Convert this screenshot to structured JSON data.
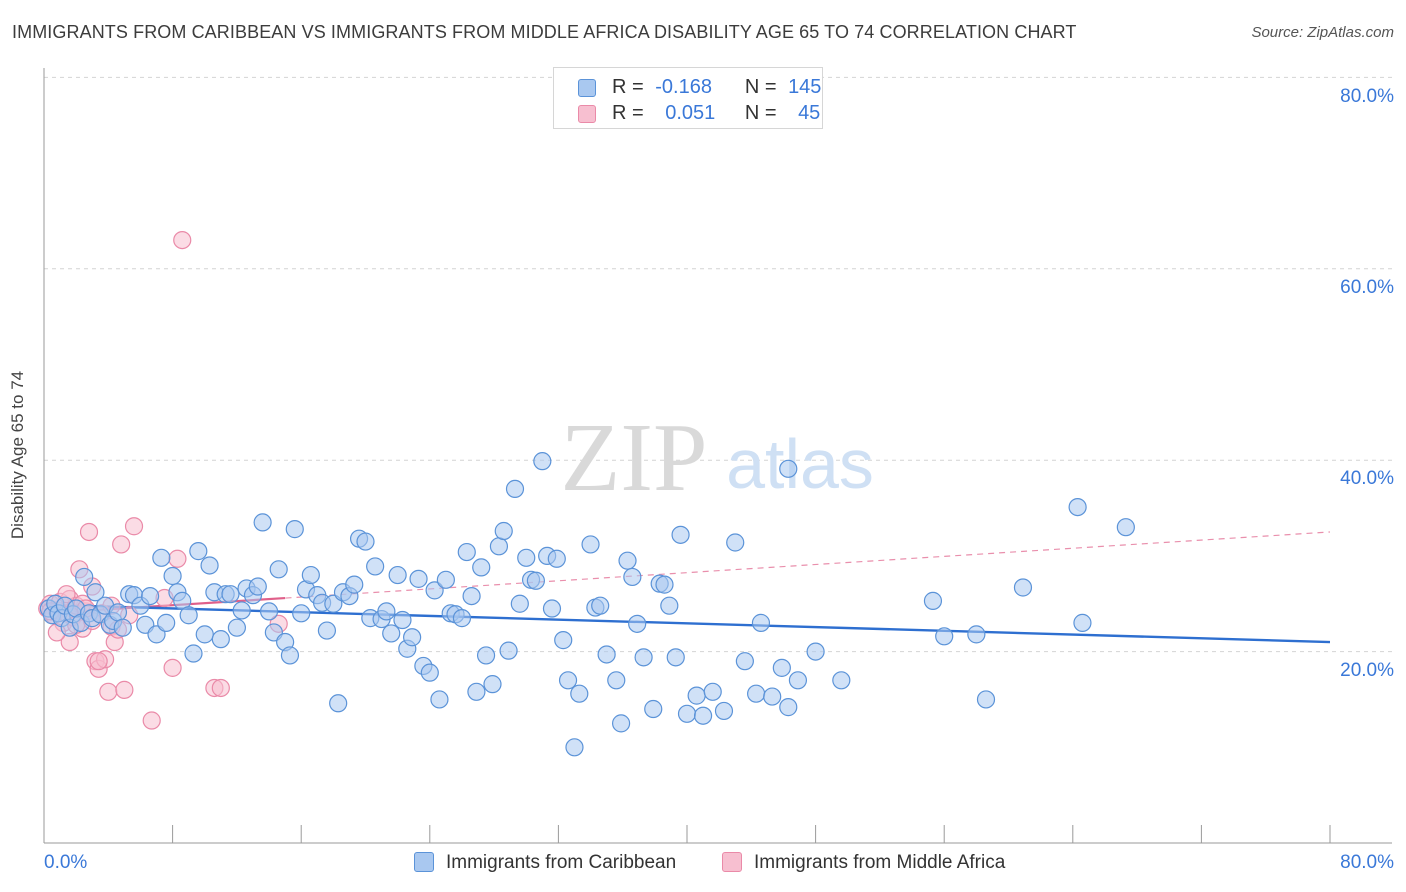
{
  "title": "IMMIGRANTS FROM CARIBBEAN VS IMMIGRANTS FROM MIDDLE AFRICA DISABILITY AGE 65 TO 74 CORRELATION CHART",
  "source": "Source: ZipAtlas.com",
  "watermark": {
    "zip": "ZIP",
    "atlas": "atlas"
  },
  "legend_top": {
    "rows": [
      {
        "r_label": "R =",
        "r_value": "-0.168",
        "n_label": "N =",
        "n_value": "145"
      },
      {
        "r_label": "R =",
        "r_value": "0.051",
        "n_label": "N =",
        "n_value": "45"
      }
    ]
  },
  "bottom_legend": [
    "Immigrants from Caribbean",
    "Immigrants from Middle Africa"
  ],
  "axis_labels": {
    "y_ticks": [
      "20.0%",
      "40.0%",
      "60.0%",
      "80.0%"
    ],
    "x_min": "0.0%",
    "x_max": "80.0%"
  },
  "colors": {
    "blue_fill": "#a9c8f0",
    "blue_stroke": "#5b93d8",
    "blue_line": "#2e6fd0",
    "pink_fill": "#f7bfd0",
    "pink_stroke": "#ea8aa8",
    "pink_line": "#e0608a",
    "axis_text": "#3a78d8"
  },
  "chart_data": {
    "type": "scatter",
    "title": "IMMIGRANTS FROM CARIBBEAN VS IMMIGRANTS FROM MIDDLE AFRICA DISABILITY AGE 65 TO 74 CORRELATION CHART",
    "xlabel": "",
    "ylabel": "Disability Age 65 to 74",
    "xlim": [
      0,
      80
    ],
    "ylim": [
      0,
      82
    ],
    "series": [
      {
        "name": "Immigrants from Caribbean",
        "R": -0.168,
        "N": 145,
        "trend": {
          "x": [
            0,
            80
          ],
          "y": [
            24.9,
            21.0
          ]
        },
        "points": [
          [
            0.3,
            24.5
          ],
          [
            0.5,
            23.8
          ],
          [
            0.7,
            25.0
          ],
          [
            0.9,
            24.0
          ],
          [
            1.1,
            23.5
          ],
          [
            1.3,
            24.8
          ],
          [
            1.6,
            22.5
          ],
          [
            1.8,
            23.9
          ],
          [
            2.0,
            24.5
          ],
          [
            2.3,
            23.0
          ],
          [
            2.5,
            27.8
          ],
          [
            2.8,
            24.0
          ],
          [
            3.0,
            23.5
          ],
          [
            3.2,
            26.2
          ],
          [
            3.5,
            23.9
          ],
          [
            3.8,
            24.8
          ],
          [
            4.1,
            22.8
          ],
          [
            4.3,
            23.2
          ],
          [
            4.6,
            24.1
          ],
          [
            4.9,
            22.5
          ],
          [
            5.3,
            26.0
          ],
          [
            5.6,
            25.9
          ],
          [
            6.0,
            24.8
          ],
          [
            6.3,
            22.8
          ],
          [
            6.6,
            25.8
          ],
          [
            7.0,
            21.8
          ],
          [
            7.3,
            29.8
          ],
          [
            7.6,
            23.0
          ],
          [
            8.0,
            27.9
          ],
          [
            8.3,
            26.2
          ],
          [
            8.6,
            25.3
          ],
          [
            9.0,
            23.8
          ],
          [
            9.3,
            19.8
          ],
          [
            9.6,
            30.5
          ],
          [
            10.0,
            21.8
          ],
          [
            10.3,
            29.0
          ],
          [
            10.6,
            26.2
          ],
          [
            11.0,
            21.3
          ],
          [
            11.3,
            26.0
          ],
          [
            11.6,
            26.0
          ],
          [
            12.0,
            22.5
          ],
          [
            12.3,
            24.3
          ],
          [
            12.6,
            26.6
          ],
          [
            13.0,
            25.9
          ],
          [
            13.3,
            26.8
          ],
          [
            13.6,
            33.5
          ],
          [
            14.0,
            24.2
          ],
          [
            14.3,
            22.0
          ],
          [
            14.6,
            28.6
          ],
          [
            15.0,
            21.0
          ],
          [
            15.3,
            19.6
          ],
          [
            15.6,
            32.8
          ],
          [
            16.0,
            24.0
          ],
          [
            16.3,
            26.5
          ],
          [
            16.6,
            28.0
          ],
          [
            17.0,
            25.9
          ],
          [
            17.3,
            25.1
          ],
          [
            17.6,
            22.2
          ],
          [
            18.0,
            25.0
          ],
          [
            18.3,
            14.6
          ],
          [
            18.6,
            26.2
          ],
          [
            19.0,
            25.8
          ],
          [
            19.3,
            27.0
          ],
          [
            19.6,
            31.8
          ],
          [
            20.0,
            31.5
          ],
          [
            20.3,
            23.5
          ],
          [
            20.6,
            28.9
          ],
          [
            21.0,
            23.4
          ],
          [
            21.3,
            24.2
          ],
          [
            21.6,
            21.9
          ],
          [
            22.0,
            28.0
          ],
          [
            22.3,
            23.3
          ],
          [
            22.6,
            20.3
          ],
          [
            22.9,
            21.5
          ],
          [
            23.3,
            27.6
          ],
          [
            23.6,
            18.5
          ],
          [
            24.0,
            17.8
          ],
          [
            24.3,
            26.4
          ],
          [
            24.6,
            15.0
          ],
          [
            25.0,
            27.5
          ],
          [
            25.3,
            24.0
          ],
          [
            25.6,
            23.9
          ],
          [
            26.0,
            23.5
          ],
          [
            26.3,
            30.4
          ],
          [
            26.6,
            25.8
          ],
          [
            26.9,
            15.8
          ],
          [
            27.2,
            28.8
          ],
          [
            27.5,
            19.6
          ],
          [
            27.9,
            16.6
          ],
          [
            28.3,
            31.0
          ],
          [
            28.6,
            32.6
          ],
          [
            28.9,
            20.1
          ],
          [
            29.3,
            37.0
          ],
          [
            29.6,
            25.0
          ],
          [
            30.0,
            29.8
          ],
          [
            30.3,
            27.5
          ],
          [
            30.6,
            27.4
          ],
          [
            31.0,
            39.9
          ],
          [
            31.3,
            30.0
          ],
          [
            31.6,
            24.5
          ],
          [
            31.9,
            29.7
          ],
          [
            32.3,
            21.2
          ],
          [
            32.6,
            17.0
          ],
          [
            33.0,
            10.0
          ],
          [
            33.3,
            15.6
          ],
          [
            34.0,
            31.2
          ],
          [
            34.3,
            24.6
          ],
          [
            34.6,
            24.8
          ],
          [
            35.0,
            19.7
          ],
          [
            35.6,
            17.0
          ],
          [
            35.9,
            12.5
          ],
          [
            36.3,
            29.5
          ],
          [
            36.6,
            27.8
          ],
          [
            36.9,
            22.9
          ],
          [
            37.3,
            19.4
          ],
          [
            37.9,
            14.0
          ],
          [
            38.3,
            27.1
          ],
          [
            38.6,
            27.0
          ],
          [
            38.9,
            24.8
          ],
          [
            39.3,
            19.4
          ],
          [
            39.6,
            32.2
          ],
          [
            40.0,
            13.5
          ],
          [
            40.6,
            15.4
          ],
          [
            41.0,
            13.3
          ],
          [
            41.6,
            15.8
          ],
          [
            42.3,
            13.8
          ],
          [
            43.0,
            31.4
          ],
          [
            43.6,
            19.0
          ],
          [
            44.3,
            15.6
          ],
          [
            44.6,
            23.0
          ],
          [
            45.3,
            15.3
          ],
          [
            45.9,
            18.3
          ],
          [
            46.3,
            14.2
          ],
          [
            46.9,
            17.0
          ],
          [
            48.0,
            20.0
          ],
          [
            49.6,
            17.0
          ],
          [
            55.3,
            25.3
          ],
          [
            56.0,
            21.6
          ],
          [
            58.0,
            21.8
          ],
          [
            58.6,
            15.0
          ],
          [
            60.9,
            26.7
          ],
          [
            64.3,
            35.1
          ],
          [
            64.6,
            23.0
          ],
          [
            67.3,
            33.0
          ],
          [
            46.3,
            39.1
          ]
        ]
      },
      {
        "name": "Immigrants from Middle Africa",
        "R": 0.051,
        "N": 45,
        "trend": {
          "x": [
            0,
            80
          ],
          "y": [
            24.0,
            32.5
          ]
        },
        "points": [
          [
            0.2,
            24.5
          ],
          [
            0.4,
            25.0
          ],
          [
            0.6,
            23.8
          ],
          [
            0.8,
            24.3
          ],
          [
            1.0,
            25.2
          ],
          [
            1.2,
            23.0
          ],
          [
            1.4,
            24.0
          ],
          [
            1.6,
            25.5
          ],
          [
            1.8,
            23.6
          ],
          [
            2.0,
            24.8
          ],
          [
            2.2,
            28.6
          ],
          [
            2.4,
            22.4
          ],
          [
            2.6,
            24.2
          ],
          [
            2.8,
            32.5
          ],
          [
            3.0,
            26.8
          ],
          [
            3.2,
            19.0
          ],
          [
            3.4,
            18.2
          ],
          [
            3.6,
            24.0
          ],
          [
            3.8,
            19.2
          ],
          [
            4.0,
            15.8
          ],
          [
            4.2,
            22.6
          ],
          [
            4.4,
            21.0
          ],
          [
            4.6,
            22.3
          ],
          [
            4.8,
            31.2
          ],
          [
            5.0,
            16.0
          ],
          [
            5.3,
            23.8
          ],
          [
            5.6,
            33.1
          ],
          [
            6.7,
            12.8
          ],
          [
            7.5,
            25.6
          ],
          [
            8.0,
            18.3
          ],
          [
            8.3,
            29.7
          ],
          [
            10.6,
            16.2
          ],
          [
            11.0,
            16.2
          ],
          [
            14.6,
            22.9
          ],
          [
            8.6,
            63.0
          ],
          [
            1.6,
            21.0
          ],
          [
            2.0,
            22.8
          ],
          [
            2.4,
            25.0
          ],
          [
            3.0,
            23.2
          ],
          [
            0.8,
            22.0
          ],
          [
            1.4,
            26.0
          ],
          [
            2.6,
            24.5
          ],
          [
            3.4,
            19.0
          ],
          [
            4.2,
            24.8
          ],
          [
            0.4,
            24.2
          ]
        ]
      }
    ]
  }
}
